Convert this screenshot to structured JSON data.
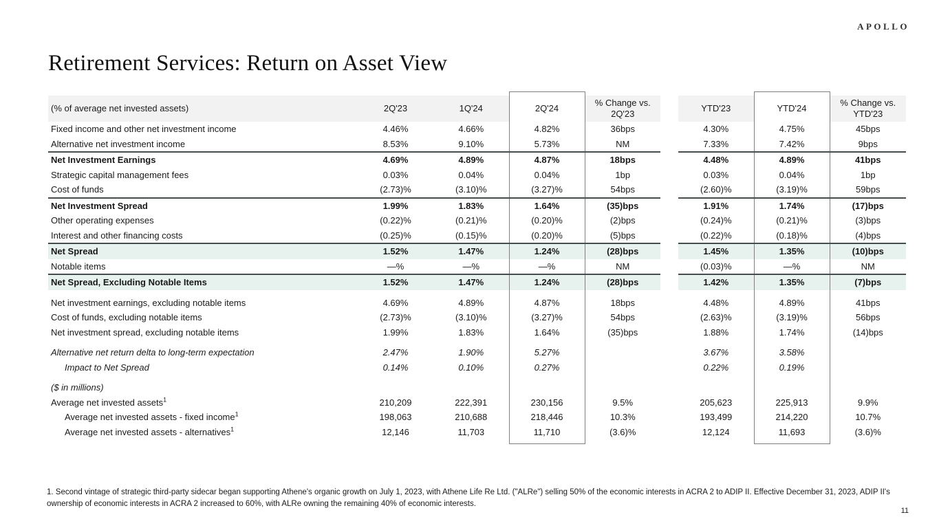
{
  "brand": {
    "logo_text": "APOLLO"
  },
  "slide": {
    "title": "Retirement Services: Return on Asset View",
    "page_number": "11"
  },
  "footnote": "1. Second vintage of strategic third-party sidecar began supporting Athene's organic growth on July 1, 2023, with Athene Life Re Ltd. (\"ALRe\") selling 50% of the economic interests in ACRA 2 to ADIP II. Effective December 31, 2023, ADIP II's ownership of economic interests in ACRA 2 increased to 60%, with ALRe owning the remaining 40% of economic interests.",
  "colors": {
    "highlight_row_bg": "#e7f1ee",
    "header_row_bg": "#f2f2f2",
    "dark_rule": "#454d4e",
    "box_border": "#7f7f7f"
  },
  "table": {
    "label_header": "(% of average net invested assets)",
    "columns": [
      "2Q'23",
      "1Q'24",
      "2Q'24",
      "% Change vs. 2Q'23",
      "YTD'23",
      "YTD'24",
      "% Change vs. YTD'23"
    ],
    "boxed_columns": [
      "2Q'24",
      "YTD'24"
    ],
    "rows": [
      {
        "label": "Fixed income and other net investment income",
        "values": [
          "4.46%",
          "4.66%",
          "4.82%",
          "36bps",
          "4.30%",
          "4.75%",
          "45bps"
        ]
      },
      {
        "label": "Alternative net investment income",
        "values": [
          "8.53%",
          "9.10%",
          "5.73%",
          "NM",
          "7.33%",
          "7.42%",
          "9bps"
        ]
      },
      {
        "label": "Net Investment Earnings",
        "bold": true,
        "topline": true,
        "values": [
          "4.69%",
          "4.89%",
          "4.87%",
          "18bps",
          "4.48%",
          "4.89%",
          "41bps"
        ]
      },
      {
        "label": "Strategic capital management fees",
        "values": [
          "0.03%",
          "0.04%",
          "0.04%",
          "1bp",
          "0.03%",
          "0.04%",
          "1bp"
        ]
      },
      {
        "label": "Cost of funds",
        "values": [
          "(2.73)%",
          "(3.10)%",
          "(3.27)%",
          "54bps",
          "(2.60)%",
          "(3.19)%",
          "59bps"
        ]
      },
      {
        "label": "Net Investment Spread",
        "bold": true,
        "topline": true,
        "values": [
          "1.99%",
          "1.83%",
          "1.64%",
          "(35)bps",
          "1.91%",
          "1.74%",
          "(17)bps"
        ]
      },
      {
        "label": "Other operating expenses",
        "values": [
          "(0.22)%",
          "(0.21)%",
          "(0.20)%",
          "(2)bps",
          "(0.24)%",
          "(0.21)%",
          "(3)bps"
        ]
      },
      {
        "label": "Interest and other financing costs",
        "values": [
          "(0.25)%",
          "(0.15)%",
          "(0.20)%",
          "(5)bps",
          "(0.22)%",
          "(0.18)%",
          "(4)bps"
        ]
      },
      {
        "label": "Net Spread",
        "bold": true,
        "topline": true,
        "highlight": true,
        "values": [
          "1.52%",
          "1.47%",
          "1.24%",
          "(28)bps",
          "1.45%",
          "1.35%",
          "(10)bps"
        ]
      },
      {
        "label": "Notable items",
        "values": [
          "—%",
          "—%",
          "—%",
          "NM",
          "(0.03)%",
          "—%",
          "NM"
        ]
      },
      {
        "label": "Net Spread, Excluding Notable Items",
        "bold": true,
        "topline": true,
        "highlight": true,
        "values": [
          "1.52%",
          "1.47%",
          "1.24%",
          "(28)bps",
          "1.42%",
          "1.35%",
          "(7)bps"
        ]
      },
      {
        "spacer": true
      },
      {
        "label": "Net investment earnings, excluding notable items",
        "values": [
          "4.69%",
          "4.89%",
          "4.87%",
          "18bps",
          "4.48%",
          "4.89%",
          "41bps"
        ]
      },
      {
        "label": "Cost of funds, excluding notable items",
        "values": [
          "(2.73)%",
          "(3.10)%",
          "(3.27)%",
          "54bps",
          "(2.63)%",
          "(3.19)%",
          "56bps"
        ]
      },
      {
        "label": "Net investment spread, excluding notable items",
        "values": [
          "1.99%",
          "1.83%",
          "1.64%",
          "(35)bps",
          "1.88%",
          "1.74%",
          "(14)bps"
        ]
      },
      {
        "spacer": true
      },
      {
        "label": "Alternative net return delta to long-term expectation",
        "italic": true,
        "values": [
          "2.47%",
          "1.90%",
          "5.27%",
          "",
          "3.67%",
          "3.58%",
          ""
        ]
      },
      {
        "label": "Impact to Net Spread",
        "italic": true,
        "indent": 1,
        "values": [
          "0.14%",
          "0.10%",
          "0.27%",
          "",
          "0.22%",
          "0.19%",
          ""
        ]
      },
      {
        "spacer": true
      },
      {
        "label": "($ in millions)",
        "italic": true,
        "values": [
          "",
          "",
          "",
          "",
          "",
          "",
          ""
        ]
      },
      {
        "label": "Average net invested assets",
        "sup": "1",
        "values": [
          "210,209",
          "222,391",
          "230,156",
          "9.5%",
          "205,623",
          "225,913",
          "9.9%"
        ]
      },
      {
        "label": "Average net invested assets - fixed income",
        "sup": "1",
        "indent": 1,
        "values": [
          "198,063",
          "210,688",
          "218,446",
          "10.3%",
          "193,499",
          "214,220",
          "10.7%"
        ]
      },
      {
        "label": "Average net invested assets - alternatives",
        "sup": "1",
        "indent": 1,
        "values": [
          "12,146",
          "11,703",
          "11,710",
          "(3.6)%",
          "12,124",
          "11,693",
          "(3.6)%"
        ]
      }
    ]
  }
}
